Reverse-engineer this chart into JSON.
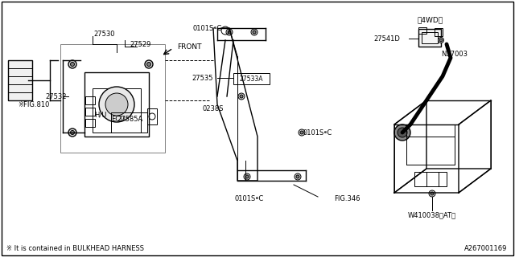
{
  "title": "",
  "bg_color": "#ffffff",
  "border_color": "#000000",
  "fig_width": 6.4,
  "fig_height": 3.2,
  "dpi": 100,
  "bottom_left_note": "※ It is contained in BULKHEAD HARNESS",
  "bottom_right_id": "A267001169",
  "labels": {
    "fig810": "※FIG.810",
    "27530": "27530",
    "27529": "27529",
    "HU": "H/U",
    "ECU": "ECU",
    "27585A": "27585A",
    "27532": "27532",
    "FRONT": "FRONT",
    "fig346": "FIG.346",
    "0101SC_top": "0101S⁌C",
    "0101SC_mid": "0101S⁌C",
    "0101SC_bot": "0101S⁌C",
    "02385": "0238S",
    "27533A": "27533A",
    "27535": "27535",
    "W410038AT": "W410038〈AT〉",
    "N37003": "N37003",
    "27541D": "27541D",
    "4WD": "〈4WD〉"
  },
  "line_color": "#000000",
  "thin_lw": 0.7,
  "med_lw": 1.0,
  "thick_lw": 1.5
}
